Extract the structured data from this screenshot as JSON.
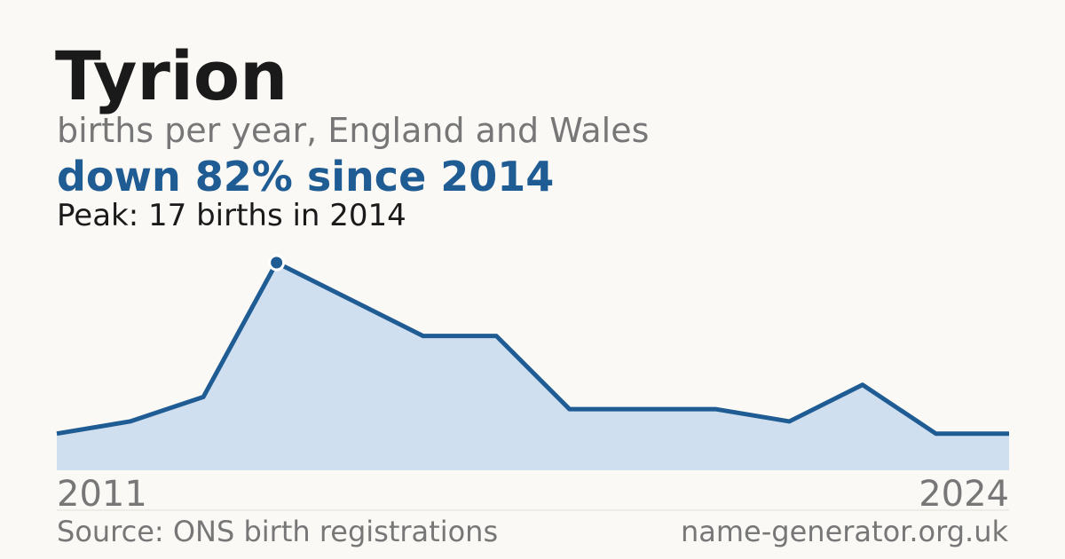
{
  "chart_data": {
    "type": "area",
    "title": "Tyrion",
    "subtitle": "births per year, England and Wales",
    "headline": "down 82% since 2014",
    "annotation": "Peak: 17 births in 2014",
    "source": "Source: ONS birth registrations",
    "site": "name-generator.org.uk",
    "x": [
      2011,
      2012,
      2013,
      2014,
      2015,
      2016,
      2017,
      2018,
      2019,
      2020,
      2021,
      2022,
      2023,
      2024
    ],
    "series": [
      {
        "name": "Tyrion",
        "color": "#1f5c94",
        "values": [
          3,
          4,
          6,
          17,
          14,
          11,
          11,
          5,
          5,
          5,
          4,
          7,
          3,
          3
        ]
      }
    ],
    "area_color": "#d0dff0",
    "xlim": [
      2011,
      2024
    ],
    "xticks": [
      2011,
      2024
    ],
    "ylim": [
      0,
      17
    ]
  }
}
